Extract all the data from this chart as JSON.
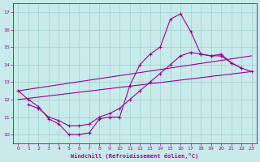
{
  "bg_color": "#c8eaea",
  "line_color": "#990099",
  "grid_color": "#9ecece",
  "xlabel": "Windchill (Refroidissement éolien,°C)",
  "ylim": [
    9.5,
    17.5
  ],
  "xlim": [
    -0.5,
    23.5
  ],
  "yticks": [
    10,
    11,
    12,
    13,
    14,
    15,
    16,
    17
  ],
  "xticks": [
    0,
    1,
    2,
    3,
    4,
    5,
    6,
    7,
    8,
    9,
    10,
    11,
    12,
    13,
    14,
    15,
    16,
    17,
    18,
    19,
    20,
    21,
    22,
    23
  ],
  "line1_x": [
    0,
    1,
    2,
    3,
    4,
    5,
    6,
    7,
    8,
    9,
    10,
    11,
    12,
    13,
    14,
    15,
    16,
    17,
    18,
    19,
    20,
    21,
    22
  ],
  "line1_y": [
    12.5,
    12.0,
    11.6,
    10.9,
    10.6,
    10.0,
    10.0,
    10.1,
    10.9,
    11.0,
    11.0,
    12.8,
    14.0,
    14.6,
    15.0,
    16.6,
    16.9,
    15.9,
    14.6,
    14.5,
    14.6,
    14.1,
    13.8
  ],
  "line2_x": [
    1,
    2,
    3,
    4,
    5,
    6,
    7,
    8,
    9,
    10,
    11,
    12,
    13,
    14,
    15,
    16,
    17,
    18,
    19,
    20,
    21,
    22,
    23
  ],
  "line2_y": [
    11.7,
    11.5,
    11.0,
    10.8,
    10.5,
    10.5,
    10.6,
    11.0,
    11.2,
    11.5,
    12.0,
    12.5,
    13.0,
    13.5,
    14.0,
    14.5,
    14.7,
    14.6,
    14.5,
    14.5,
    14.1,
    13.8,
    13.6
  ],
  "trend1_x": [
    0,
    23
  ],
  "trend1_y": [
    12.0,
    13.6
  ],
  "trend2_x": [
    0,
    23
  ],
  "trend2_y": [
    12.5,
    14.5
  ]
}
